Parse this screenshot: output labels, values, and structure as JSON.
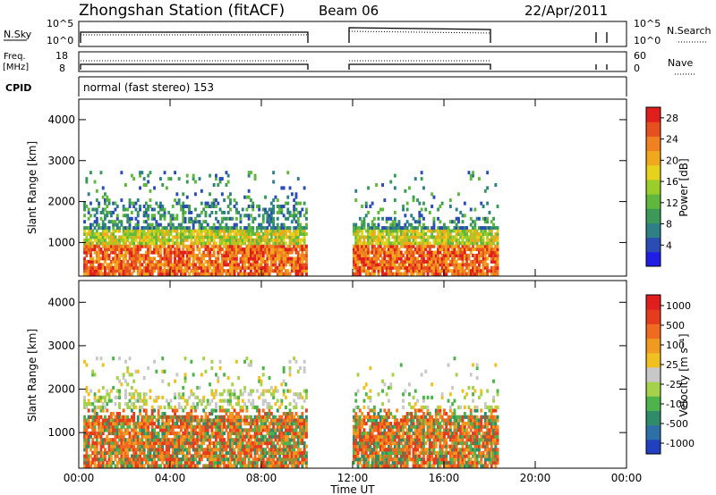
{
  "header": {
    "station": "Zhongshan Station (fitACF)",
    "beam": "Beam 06",
    "date": "22/Apr/2011"
  },
  "top_panels": {
    "nsky_label": "N.Sky",
    "nsky_ticks": [
      "10^5",
      "10^0"
    ],
    "nsearch_label": "N.Search",
    "nsearch_ticks": [
      "10^5",
      "10^0"
    ],
    "freq_label": "Freq.",
    "freq_unit": "[MHz]",
    "freq_ticks": [
      "18",
      "8"
    ],
    "nave_label": "Nave",
    "nave_ticks": [
      "60",
      "0"
    ],
    "cpid_label": "CPID",
    "cpid_text": "normal (fast stereo) 153"
  },
  "chart_data": [
    {
      "type": "heatmap",
      "title": "",
      "xlabel": "Time UT",
      "ylabel": "Slant Range [km]",
      "xlim": [
        0,
        24
      ],
      "ylim": [
        180,
        4500
      ],
      "x_ticks": [
        "00:00",
        "04:00",
        "08:00",
        "12:00",
        "16:00",
        "20:00",
        "00:00"
      ],
      "y_ticks": [
        "1000",
        "2000",
        "3000",
        "4000"
      ],
      "colorbar_label": "Power [dB]",
      "colorbar_ticks": [
        "4",
        "8",
        "12",
        "16",
        "20",
        "24",
        "28"
      ],
      "colorbar_range": [
        0,
        30
      ],
      "colorbar_colors": [
        "#1e1ee6",
        "#2a4cb4",
        "#2e7f86",
        "#3c9a58",
        "#5fb83c",
        "#9bcd2a",
        "#e6d21c",
        "#f0a81c",
        "#f08020",
        "#e6501e",
        "#e01e1e"
      ],
      "data_extent": [
        [
          0.2,
          10.0
        ],
        [
          12.0,
          18.3
        ]
      ]
    },
    {
      "type": "heatmap",
      "title": "",
      "xlabel": "Time UT",
      "ylabel": "Slant Range [km]",
      "xlim": [
        0,
        24
      ],
      "ylim": [
        180,
        4500
      ],
      "x_ticks": [
        "00:00",
        "04:00",
        "08:00",
        "12:00",
        "16:00",
        "20:00",
        "00:00"
      ],
      "y_ticks": [
        "1000",
        "2000",
        "3000",
        "4000"
      ],
      "colorbar_label": "Velocity [m s⁻¹]",
      "colorbar_ticks": [
        "1000",
        "500",
        "100",
        "25",
        "-25",
        "-100",
        "-500",
        "-1000"
      ],
      "colorbar_colors": [
        "#2040c0",
        "#2f6fa8",
        "#2f8c6a",
        "#4db34a",
        "#a5d24a",
        "#c8c8c8",
        "#f0c020",
        "#f09a20",
        "#f06a20",
        "#e63c1e",
        "#e01e1e"
      ],
      "data_extent": [
        [
          0.2,
          10.0
        ],
        [
          12.0,
          18.3
        ]
      ]
    }
  ]
}
